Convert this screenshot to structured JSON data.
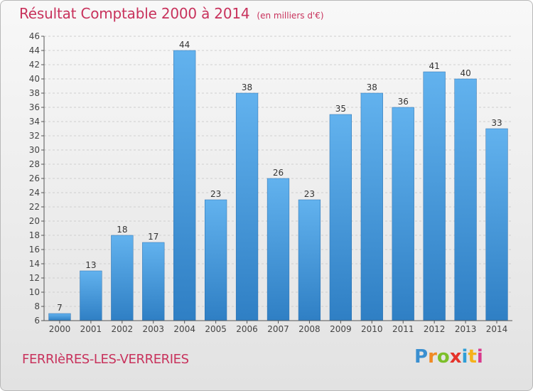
{
  "chart_data": {
    "type": "bar",
    "title": "Résultat Comptable 2000 à 2014",
    "subtitle": "(en milliers d'€)",
    "categories": [
      "2000",
      "2001",
      "2002",
      "2003",
      "2004",
      "2005",
      "2006",
      "2007",
      "2008",
      "2009",
      "2010",
      "2011",
      "2012",
      "2013",
      "2014"
    ],
    "values": [
      7,
      13,
      18,
      17,
      44,
      23,
      38,
      26,
      23,
      35,
      38,
      36,
      41,
      40,
      33
    ],
    "ylim": [
      6,
      46
    ],
    "yticks": [
      6,
      8,
      10,
      12,
      14,
      16,
      18,
      20,
      22,
      24,
      26,
      28,
      30,
      32,
      34,
      36,
      38,
      40,
      42,
      44,
      46
    ],
    "grid": true,
    "bar_color": "#3c8fd6",
    "title_color": "#c8325c"
  },
  "footer": {
    "commune": "FERRIèRES-LES-VERRERIES",
    "logo_text": "Proxiti",
    "logo_colors": [
      "#3a8fd0",
      "#f08a24",
      "#7cbf2a",
      "#e5332a",
      "#2f9ed6",
      "#f5b21b",
      "#d93a8c"
    ]
  }
}
